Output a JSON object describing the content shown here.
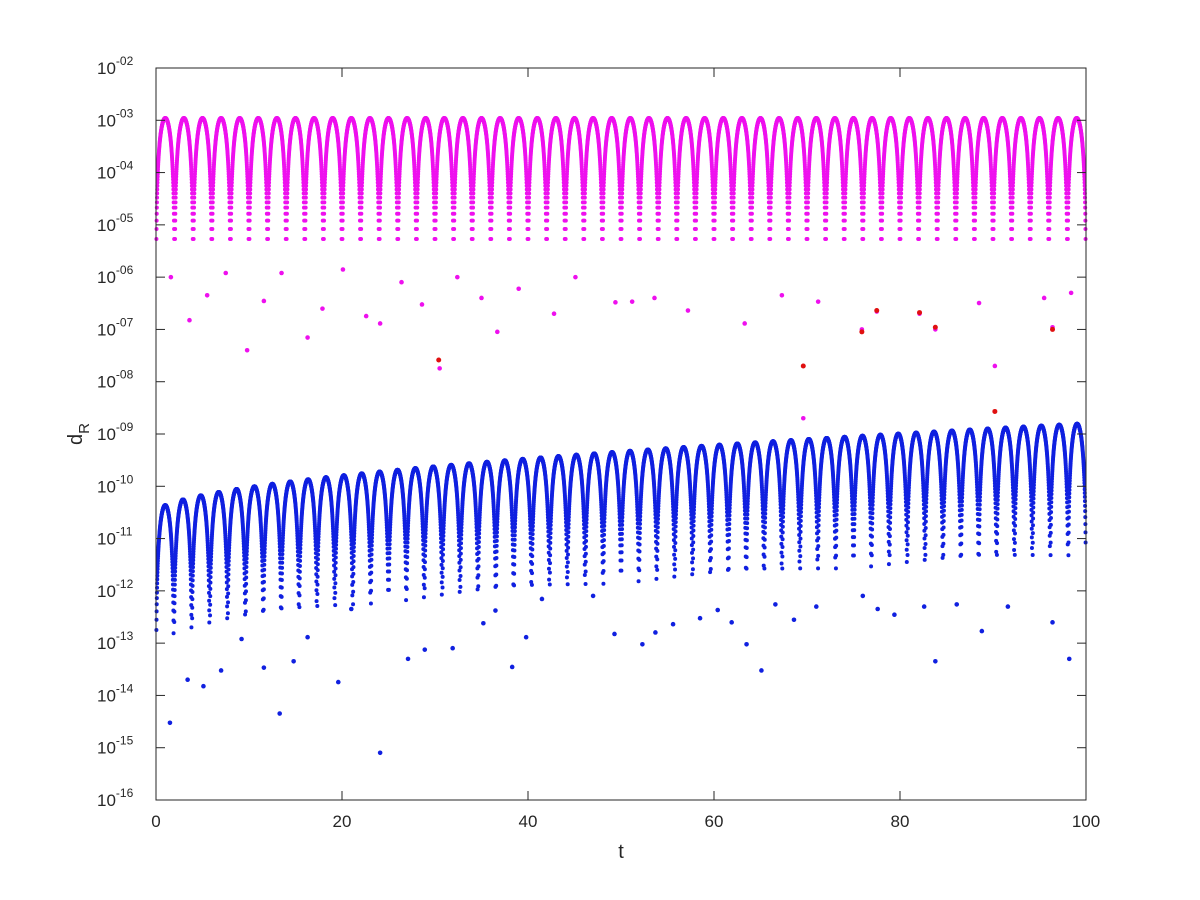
{
  "chart_data": {
    "type": "scatter",
    "title": "",
    "xlabel": "t",
    "ylabel_main": "d",
    "ylabel_sub": "R",
    "xlim": [
      0,
      100
    ],
    "ylim": [
      1e-16,
      0.01
    ],
    "y_scale": "log",
    "grid": false,
    "legend": "none",
    "x_ticks": [
      0,
      20,
      40,
      60,
      80,
      100
    ],
    "x_tick_labels": [
      "0",
      "20",
      "40",
      "60",
      "80",
      "100"
    ],
    "y_tick_exponents": [
      -16,
      -15,
      -14,
      -13,
      -12,
      -11,
      -10,
      -9,
      -8,
      -7,
      -6,
      -5,
      -4,
      -3,
      -2
    ],
    "y_tick_labels": [
      "10",
      "10",
      "10",
      "10",
      "10",
      "10",
      "10",
      "10",
      "10",
      "10",
      "10",
      "10",
      "10",
      "10",
      "10"
    ],
    "y_tick_sups": [
      "-16",
      "-15",
      "-14",
      "-13",
      "-12",
      "-11",
      "-10",
      "-09",
      "-08",
      "-07",
      "-06",
      "-05",
      "-04",
      "-03",
      "-02"
    ],
    "series": [
      {
        "color": "#ee10ee",
        "description": "oscillating envelope near 1e-03",
        "num_lobes": 50,
        "peak": 0.0011,
        "minima": [
          [
            1.6,
            1e-06
          ],
          [
            3.6,
            1.5e-07
          ],
          [
            5.5,
            4.5e-07
          ],
          [
            7.5,
            1.2e-06
          ],
          [
            9.8,
            4e-08
          ],
          [
            11.6,
            3.5e-07
          ],
          [
            13.5,
            1.2e-06
          ],
          [
            16.3,
            7e-08
          ],
          [
            17.9,
            2.5e-07
          ],
          [
            20.1,
            1.4e-06
          ],
          [
            22.6,
            1.8e-07
          ],
          [
            24.1,
            1.3e-07
          ],
          [
            26.4,
            8e-07
          ],
          [
            28.6,
            3e-07
          ],
          [
            30.5,
            1.8e-08
          ],
          [
            32.4,
            1e-06
          ],
          [
            35.0,
            4e-07
          ],
          [
            36.7,
            9e-08
          ],
          [
            39.0,
            6e-07
          ],
          [
            42.8,
            2e-07
          ],
          [
            45.1,
            1e-06
          ],
          [
            49.4,
            3.3e-07
          ],
          [
            51.2,
            3.4e-07
          ],
          [
            53.6,
            4e-07
          ],
          [
            57.2,
            2.3e-07
          ],
          [
            63.3,
            1.3e-07
          ],
          [
            67.3,
            4.5e-07
          ],
          [
            69.6,
            2e-09
          ],
          [
            71.2,
            3.4e-07
          ],
          [
            75.9,
            1e-07
          ],
          [
            77.5,
            2.2e-07
          ],
          [
            82.1,
            2e-07
          ],
          [
            83.8,
            1e-07
          ],
          [
            88.5,
            3.2e-07
          ],
          [
            90.2,
            2e-08
          ],
          [
            95.5,
            4e-07
          ],
          [
            96.4,
            1.1e-07
          ],
          [
            98.4,
            5e-07
          ]
        ]
      },
      {
        "color": "#e01010",
        "description": "red points",
        "points": [
          [
            30.4,
            2.6e-08
          ],
          [
            69.6,
            2e-08
          ],
          [
            75.9,
            9e-08
          ],
          [
            77.5,
            2.3e-07
          ],
          [
            82.1,
            2.1e-07
          ],
          [
            83.8,
            1.1e-07
          ],
          [
            90.2,
            2.7e-09
          ],
          [
            96.4,
            1e-07
          ]
        ]
      },
      {
        "color": "#1020e0",
        "description": "growing oscillation from ~3e-11 to ~1.6e-9",
        "num_lobes": 52,
        "peak_start": 3.2e-11,
        "peak_end": 1.6e-09,
        "minima": [
          [
            1.5,
            3e-15
          ],
          [
            3.4,
            2e-14
          ],
          [
            5.1,
            1.5e-14
          ],
          [
            7.0,
            3e-14
          ],
          [
            9.2,
            1.2e-13
          ],
          [
            11.6,
            3.4e-14
          ],
          [
            13.3,
            4.5e-15
          ],
          [
            14.8,
            4.5e-14
          ],
          [
            16.3,
            1.3e-13
          ],
          [
            19.6,
            1.8e-14
          ],
          [
            21.0,
            4.5e-13
          ],
          [
            24.1,
            8e-16
          ],
          [
            27.1,
            5e-14
          ],
          [
            28.9,
            7.5e-14
          ],
          [
            31.9,
            8e-14
          ],
          [
            35.2,
            2.4e-13
          ],
          [
            36.5,
            4.2e-13
          ],
          [
            38.3,
            3.5e-14
          ],
          [
            39.8,
            1.3e-13
          ],
          [
            41.5,
            7e-13
          ],
          [
            47.0,
            8e-13
          ],
          [
            49.3,
            1.5e-13
          ],
          [
            52.3,
            9.5e-14
          ],
          [
            53.7,
            1.6e-13
          ],
          [
            55.6,
            2.3e-13
          ],
          [
            58.5,
            3e-13
          ],
          [
            60.4,
            4.3e-13
          ],
          [
            61.9,
            2.5e-13
          ],
          [
            63.5,
            9.5e-14
          ],
          [
            65.1,
            3e-14
          ],
          [
            66.6,
            5.5e-13
          ],
          [
            68.6,
            2.8e-13
          ],
          [
            71.0,
            5e-13
          ],
          [
            76.0,
            8e-13
          ],
          [
            77.6,
            4.5e-13
          ],
          [
            79.4,
            3.5e-13
          ],
          [
            82.6,
            5e-13
          ],
          [
            83.8,
            4.5e-14
          ],
          [
            86.1,
            5.5e-13
          ],
          [
            88.8,
            1.7e-13
          ],
          [
            91.6,
            5e-13
          ],
          [
            96.4,
            2.5e-13
          ],
          [
            98.2,
            5e-14
          ]
        ]
      }
    ]
  }
}
